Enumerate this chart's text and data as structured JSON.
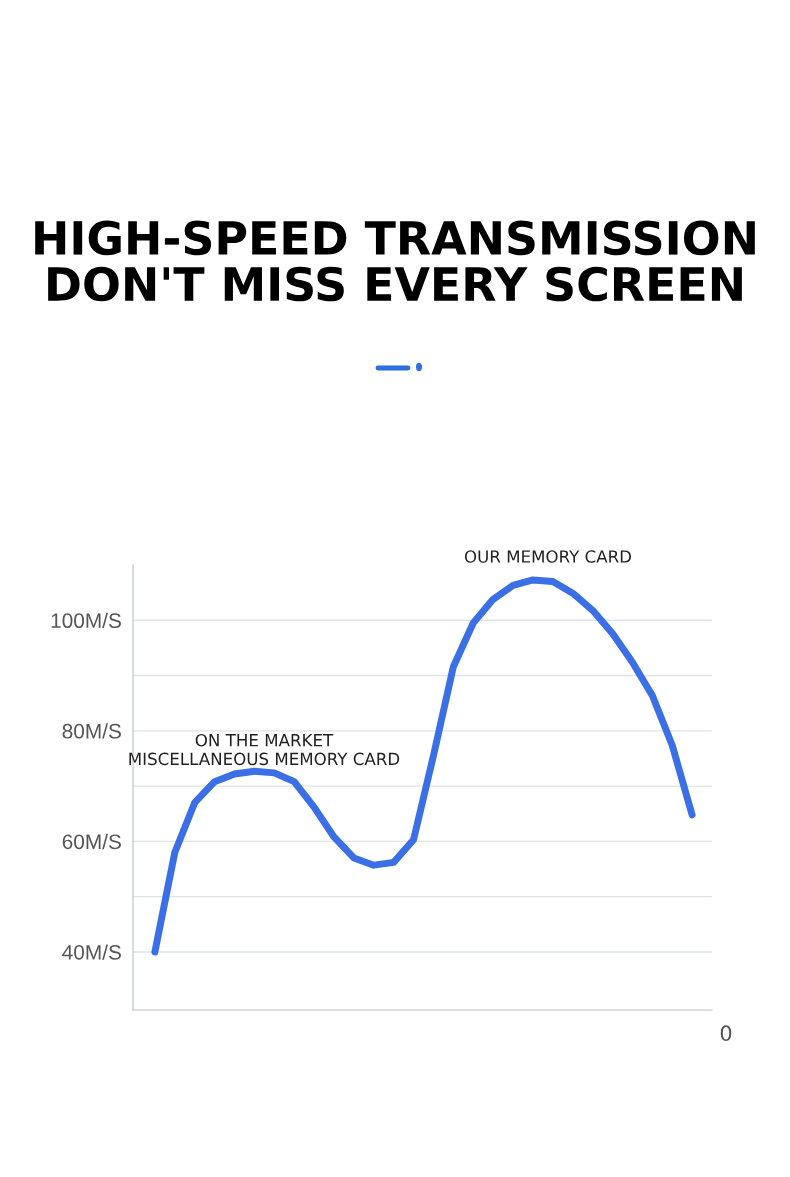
{
  "chart_data": {
    "type": "line",
    "title": "HIGH-SPEED TRANSMISSION\nDON'T MISS EVERY SCREEN",
    "categories": [
      null,
      null,
      null,
      null,
      null,
      null,
      null,
      null,
      null,
      null,
      null,
      null,
      null,
      null,
      null,
      null,
      null,
      null,
      null,
      null,
      null,
      null,
      null,
      null,
      null,
      null,
      null,
      null
    ],
    "series": [
      {
        "color": "#3b6fe6",
        "values": [
          40,
          58,
          67,
          70.8,
          72.2,
          72.7,
          72.4,
          70.8,
          66.2,
          60.8,
          57,
          55.7,
          56.2,
          60.3,
          75.5,
          91.6,
          99.5,
          103.8,
          106.3,
          107.3,
          107,
          104.9,
          101.8,
          97.6,
          92.4,
          86.4,
          77.4,
          64.8
        ]
      }
    ],
    "ylim": [
      29.5,
      110
    ],
    "yticks": [
      {
        "value": 40,
        "label": "40M/S"
      },
      {
        "value": 50,
        "label": null
      },
      {
        "value": 60,
        "label": "60M/S"
      },
      {
        "value": 70,
        "label": null
      },
      {
        "value": 80,
        "label": "80M/S"
      },
      {
        "value": 90,
        "label": null
      },
      {
        "value": 100,
        "label": "100M/S"
      }
    ],
    "grid": "y",
    "marker": "none",
    "line_style": "solid",
    "annotations": [
      "OUR MEMORY CARD",
      "ON THE MARKET\nMISCELLANEOUS MEMORY CARD",
      "0"
    ]
  }
}
